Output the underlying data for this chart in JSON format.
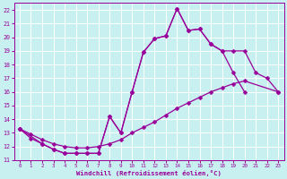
{
  "xlabel": "Windchill (Refroidissement éolien,°C)",
  "bg_color": "#c8f0f0",
  "line_color": "#990099",
  "grid_color": "#ffffff",
  "xlim": [
    -0.5,
    23.5
  ],
  "ylim": [
    11,
    22.5
  ],
  "xticks": [
    0,
    1,
    2,
    3,
    4,
    5,
    6,
    7,
    8,
    9,
    10,
    11,
    12,
    13,
    14,
    15,
    16,
    17,
    18,
    19,
    20,
    21,
    22,
    23
  ],
  "yticks": [
    11,
    12,
    13,
    14,
    15,
    16,
    17,
    18,
    19,
    20,
    21,
    22
  ],
  "curve1_x": [
    0,
    1,
    2,
    3,
    4,
    5,
    6,
    7,
    8,
    9,
    10,
    11,
    12,
    13,
    14,
    15,
    16,
    17,
    18,
    19,
    20
  ],
  "curve1_y": [
    13.3,
    12.6,
    12.2,
    11.8,
    11.5,
    11.5,
    11.5,
    11.5,
    14.2,
    13.0,
    16.0,
    18.9,
    19.9,
    20.1,
    22.1,
    20.5,
    20.6,
    19.5,
    19.0,
    17.4,
    16.0
  ],
  "curve2_x": [
    0,
    2,
    3,
    4,
    5,
    6,
    7,
    8,
    9,
    10,
    11,
    12,
    13,
    14,
    15,
    16,
    17,
    18,
    19,
    20,
    21,
    22,
    23
  ],
  "curve2_y": [
    13.3,
    12.2,
    11.8,
    11.5,
    11.5,
    11.5,
    11.5,
    14.2,
    13.0,
    16.0,
    18.9,
    19.9,
    20.1,
    22.1,
    20.5,
    20.6,
    19.5,
    19.0,
    19.0,
    19.0,
    17.4,
    17.0,
    16.0
  ],
  "curve3_x": [
    0,
    1,
    2,
    3,
    4,
    5,
    6,
    7,
    8,
    9,
    10,
    11,
    12,
    13,
    14,
    15,
    16,
    17,
    18,
    19,
    20,
    21,
    22,
    23
  ],
  "curve3_y": [
    13.3,
    12.9,
    12.5,
    12.2,
    12.0,
    11.9,
    11.9,
    12.0,
    12.2,
    12.5,
    13.0,
    13.4,
    13.8,
    14.3,
    14.8,
    15.2,
    15.6,
    16.0,
    16.3,
    16.6,
    16.8,
    null,
    null,
    16.0
  ]
}
